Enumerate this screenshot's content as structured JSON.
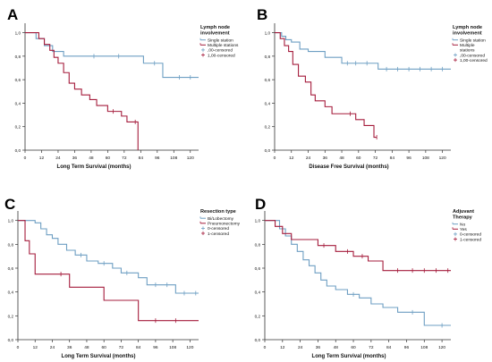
{
  "colors": {
    "blue": "#6e9fc3",
    "red": "#a51c3c",
    "axis": "#333333",
    "text": "#111111"
  },
  "chart_data": [
    {
      "panel_label": "A",
      "type": "line",
      "xlabel": "Long Term Survival (months)",
      "ylabel": "",
      "xlim": [
        0,
        126
      ],
      "ylim": [
        0,
        1.05
      ],
      "x_ticks": [
        0,
        12,
        24,
        36,
        48,
        60,
        72,
        84,
        96,
        108,
        120
      ],
      "y_ticks": [
        0.0,
        0.2,
        0.4,
        0.6,
        0.8,
        1.0
      ],
      "x_tick_labels": [
        "0",
        "12",
        "24",
        "36",
        "48",
        "60",
        "72",
        "84",
        "96",
        "108",
        "120"
      ],
      "y_tick_labels": [
        "0,0",
        "0,2",
        "0,4",
        "0,6",
        "0,8",
        "1,0"
      ],
      "legend": {
        "title": "Lymph node involvement",
        "title_lines": [
          "Lymph node",
          "involvement"
        ],
        "position": "top-right",
        "entries": [
          {
            "label": "Single station",
            "lines": [
              "Single station"
            ],
            "color": "#6e9fc3",
            "kind": "line"
          },
          {
            "label": "Multiple stations",
            "lines": [
              "Multiple stations"
            ],
            "color": "#a51c3c",
            "kind": "line"
          },
          {
            "label": ",00-censored",
            "lines": [
              ",00-censored"
            ],
            "color": "#6e9fc3",
            "kind": "censor"
          },
          {
            "label": "1,00-censored",
            "lines": [
              "1,00-censored"
            ],
            "color": "#a51c3c",
            "kind": "censor"
          }
        ]
      },
      "series": [
        {
          "name": "Single station",
          "color": "#6e9fc3",
          "x": [
            0,
            8,
            14,
            20,
            28,
            86,
            100,
            126
          ],
          "y": [
            1.0,
            0.95,
            0.89,
            0.84,
            0.8,
            0.74,
            0.62,
            0.62
          ],
          "censored_x": [
            50,
            68,
            94,
            112,
            120
          ]
        },
        {
          "name": "Multiple stations",
          "color": "#a51c3c",
          "x": [
            0,
            10,
            14,
            18,
            21,
            24,
            28,
            32,
            36,
            41,
            47,
            52,
            60,
            70,
            74,
            82,
            82
          ],
          "y": [
            1.0,
            0.95,
            0.9,
            0.85,
            0.79,
            0.74,
            0.66,
            0.57,
            0.52,
            0.47,
            0.43,
            0.38,
            0.33,
            0.29,
            0.24,
            0.24,
            0.0
          ],
          "censored_x": [
            64,
            80
          ]
        }
      ]
    },
    {
      "panel_label": "B",
      "type": "line",
      "xlabel": "Disease Free Survival (months)",
      "ylabel": "",
      "xlim": [
        0,
        126
      ],
      "ylim": [
        0,
        1.05
      ],
      "x_ticks": [
        0,
        12,
        24,
        36,
        48,
        60,
        72,
        84,
        96,
        108,
        120
      ],
      "y_ticks": [
        0.0,
        0.2,
        0.4,
        0.6,
        0.8,
        1.0
      ],
      "x_tick_labels": [
        "0",
        "12",
        "24",
        "36",
        "48",
        "60",
        "72",
        "84",
        "96",
        "108",
        "120"
      ],
      "y_tick_labels": [
        "0,0",
        "0,2",
        "0,4",
        "0,6",
        "0,8",
        "1,0"
      ],
      "legend": {
        "title": "Lymph node involvement",
        "title_lines": [
          "Lymph node",
          "involvement"
        ],
        "position": "top-right",
        "entries": [
          {
            "label": "Single station",
            "lines": [
              "Single station"
            ],
            "color": "#6e9fc3",
            "kind": "line"
          },
          {
            "label": "Multiple stations",
            "lines": [
              "Multiple",
              "stations"
            ],
            "color": "#a51c3c",
            "kind": "line"
          },
          {
            "label": ",00-censored",
            "lines": [
              ",00-censored"
            ],
            "color": "#6e9fc3",
            "kind": "censor"
          },
          {
            "label": "1,00-censored",
            "lines": [
              "1,00-censored"
            ],
            "color": "#a51c3c",
            "kind": "censor"
          }
        ]
      },
      "series": [
        {
          "name": "Single station",
          "color": "#6e9fc3",
          "x": [
            0,
            5,
            8,
            12,
            18,
            24,
            36,
            48,
            74,
            126
          ],
          "y": [
            1.0,
            0.97,
            0.94,
            0.92,
            0.86,
            0.84,
            0.79,
            0.74,
            0.69,
            0.69
          ],
          "censored_x": [
            52,
            58,
            66,
            80,
            88,
            96,
            104,
            112,
            120
          ]
        },
        {
          "name": "Multiple stations",
          "color": "#a51c3c",
          "x": [
            0,
            4,
            7,
            10,
            13,
            17,
            22,
            26,
            29,
            32,
            36,
            41,
            46,
            58,
            64,
            71,
            73
          ],
          "y": [
            1.0,
            0.95,
            0.89,
            0.84,
            0.73,
            0.63,
            0.58,
            0.47,
            0.42,
            0.42,
            0.37,
            0.31,
            0.31,
            0.26,
            0.21,
            0.11,
            0.11
          ],
          "censored_x": [
            54,
            73
          ]
        }
      ]
    },
    {
      "panel_label": "C",
      "type": "line",
      "xlabel": "Long Term Survival (months)",
      "ylabel": "",
      "xlim": [
        0,
        126
      ],
      "ylim": [
        0,
        1.05
      ],
      "x_ticks": [
        0,
        12,
        24,
        36,
        48,
        60,
        72,
        84,
        96,
        108,
        120
      ],
      "y_ticks": [
        0.0,
        0.2,
        0.4,
        0.6,
        0.8,
        1.0
      ],
      "x_tick_labels": [
        "0",
        "12",
        "24",
        "36",
        "48",
        "60",
        "72",
        "84",
        "96",
        "108",
        "120"
      ],
      "y_tick_labels": [
        "0,0",
        "0,2",
        "0,4",
        "0,6",
        "0,8",
        "1,0"
      ],
      "legend": {
        "title": "Resection type",
        "title_lines": [
          "Resection type"
        ],
        "position": "top-right",
        "entries": [
          {
            "label": "Bi/Lobectomy",
            "lines": [
              "Bi/Lobectomy"
            ],
            "color": "#6e9fc3",
            "kind": "line"
          },
          {
            "label": "Pneumonectomy",
            "lines": [
              "Pneumonectomy"
            ],
            "color": "#a51c3c",
            "kind": "line"
          },
          {
            "label": "0-censored",
            "lines": [
              "0-censored"
            ],
            "color": "#6e9fc3",
            "kind": "censor"
          },
          {
            "label": "1-censored",
            "lines": [
              "1-censored"
            ],
            "color": "#a51c3c",
            "kind": "censor"
          }
        ]
      },
      "series": [
        {
          "name": "Bi/Lobectomy",
          "color": "#6e9fc3",
          "x": [
            0,
            12,
            16,
            20,
            24,
            28,
            34,
            40,
            48,
            56,
            66,
            72,
            84,
            90,
            110,
            126
          ],
          "y": [
            1.0,
            0.98,
            0.93,
            0.88,
            0.85,
            0.8,
            0.75,
            0.71,
            0.66,
            0.64,
            0.6,
            0.56,
            0.52,
            0.46,
            0.39,
            0.39
          ],
          "censored_x": [
            44,
            60,
            76,
            96,
            104,
            116,
            124
          ]
        },
        {
          "name": "Pneumonectomy",
          "color": "#a51c3c",
          "x": [
            0,
            5,
            8,
            12,
            24,
            36,
            60,
            84,
            126
          ],
          "y": [
            1.0,
            0.83,
            0.72,
            0.55,
            0.55,
            0.44,
            0.33,
            0.16,
            0.16
          ],
          "censored_x": [
            30,
            96,
            110
          ]
        }
      ]
    },
    {
      "panel_label": "D",
      "type": "line",
      "xlabel": "Long Term Survival (months)",
      "ylabel": "",
      "xlim": [
        0,
        126
      ],
      "ylim": [
        0,
        1.05
      ],
      "x_ticks": [
        0,
        12,
        24,
        36,
        48,
        60,
        72,
        84,
        96,
        108,
        120
      ],
      "y_ticks": [
        0.0,
        0.2,
        0.4,
        0.6,
        0.8,
        1.0
      ],
      "x_tick_labels": [
        "0",
        "12",
        "24",
        "36",
        "48",
        "60",
        "72",
        "84",
        "96",
        "108",
        "120"
      ],
      "y_tick_labels": [
        "0,0",
        "0,2",
        "0,4",
        "0,6",
        "0,8",
        "1,0"
      ],
      "legend": {
        "title": "Adjuvant Therapy",
        "title_lines": [
          "Adjuvant",
          "Therapy"
        ],
        "position": "top-right",
        "entries": [
          {
            "label": "No",
            "lines": [
              "No"
            ],
            "color": "#6e9fc3",
            "kind": "line"
          },
          {
            "label": "Yes",
            "lines": [
              "Yes"
            ],
            "color": "#a51c3c",
            "kind": "line"
          },
          {
            "label": "0-censored",
            "lines": [
              "0-censored"
            ],
            "color": "#6e9fc3",
            "kind": "censor"
          },
          {
            "label": "1-censored",
            "lines": [
              "1-censored"
            ],
            "color": "#a51c3c",
            "kind": "censor"
          }
        ]
      },
      "series": [
        {
          "name": "No",
          "color": "#6e9fc3",
          "x": [
            0,
            10,
            14,
            18,
            22,
            26,
            30,
            34,
            38,
            42,
            48,
            56,
            64,
            72,
            80,
            90,
            108,
            126
          ],
          "y": [
            1.0,
            0.93,
            0.87,
            0.8,
            0.74,
            0.67,
            0.62,
            0.56,
            0.5,
            0.45,
            0.42,
            0.38,
            0.35,
            0.3,
            0.27,
            0.23,
            0.12,
            0.12
          ],
          "censored_x": [
            60,
            100,
            120
          ]
        },
        {
          "name": "Yes",
          "color": "#a51c3c",
          "x": [
            0,
            7,
            12,
            18,
            24,
            36,
            48,
            60,
            70,
            80,
            126
          ],
          "y": [
            1.0,
            0.95,
            0.89,
            0.84,
            0.84,
            0.79,
            0.74,
            0.7,
            0.66,
            0.58,
            0.58
          ],
          "censored_x": [
            40,
            56,
            66,
            90,
            100,
            108,
            116,
            124
          ]
        }
      ]
    }
  ]
}
